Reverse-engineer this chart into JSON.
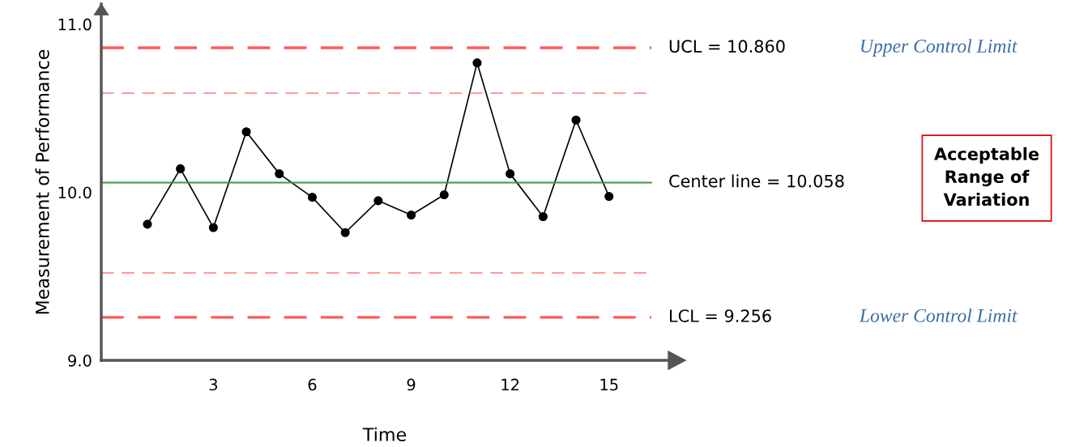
{
  "chart_data": {
    "type": "line",
    "xlabel": "Time",
    "ylabel": "Measurement of Performance",
    "x": [
      1,
      2,
      3,
      4,
      5,
      6,
      7,
      8,
      9,
      10,
      11,
      12,
      13,
      14,
      15
    ],
    "series": [
      {
        "color": "#000000",
        "values": [
          9.81,
          10.14,
          9.79,
          10.36,
          10.11,
          9.97,
          9.76,
          9.95,
          9.865,
          9.985,
          10.77,
          10.11,
          9.855,
          10.43,
          9.975
        ]
      }
    ],
    "marker": "circle",
    "line_style": "solid",
    "grid": false,
    "legend": false,
    "xlim": [
      -0.4,
      16.8
    ],
    "xticks": [
      3,
      6,
      9,
      12,
      15
    ],
    "ylim": [
      9.0,
      11.12
    ],
    "yticks": [
      {
        "value": 9.0,
        "label": "9.0"
      },
      {
        "value": 10.0,
        "label": "10.0"
      },
      {
        "value": 11.0,
        "label": "11.0"
      }
    ],
    "ref_lines": [
      {
        "axis": "y",
        "value": 10.86,
        "label": "UCL = 10.860",
        "color": "#ff5a5a",
        "line_style": "dashed"
      },
      {
        "axis": "y",
        "value": 10.59,
        "color": "#ff9a9a",
        "line_style": "dashed"
      },
      {
        "axis": "y",
        "value": 10.058,
        "label": "Center line = 10.058",
        "color": "#3a9a3a",
        "line_style": "solid"
      },
      {
        "axis": "y",
        "value": 9.52,
        "color": "#ff9a9a",
        "line_style": "dashed"
      },
      {
        "axis": "y",
        "value": 9.256,
        "label": "LCL = 9.256",
        "color": "#ff5a5a",
        "line_style": "dashed"
      }
    ],
    "annotations": [
      "Upper Control Limit",
      "Lower Control Limit",
      "Acceptable\nRange of\nVariation"
    ]
  }
}
